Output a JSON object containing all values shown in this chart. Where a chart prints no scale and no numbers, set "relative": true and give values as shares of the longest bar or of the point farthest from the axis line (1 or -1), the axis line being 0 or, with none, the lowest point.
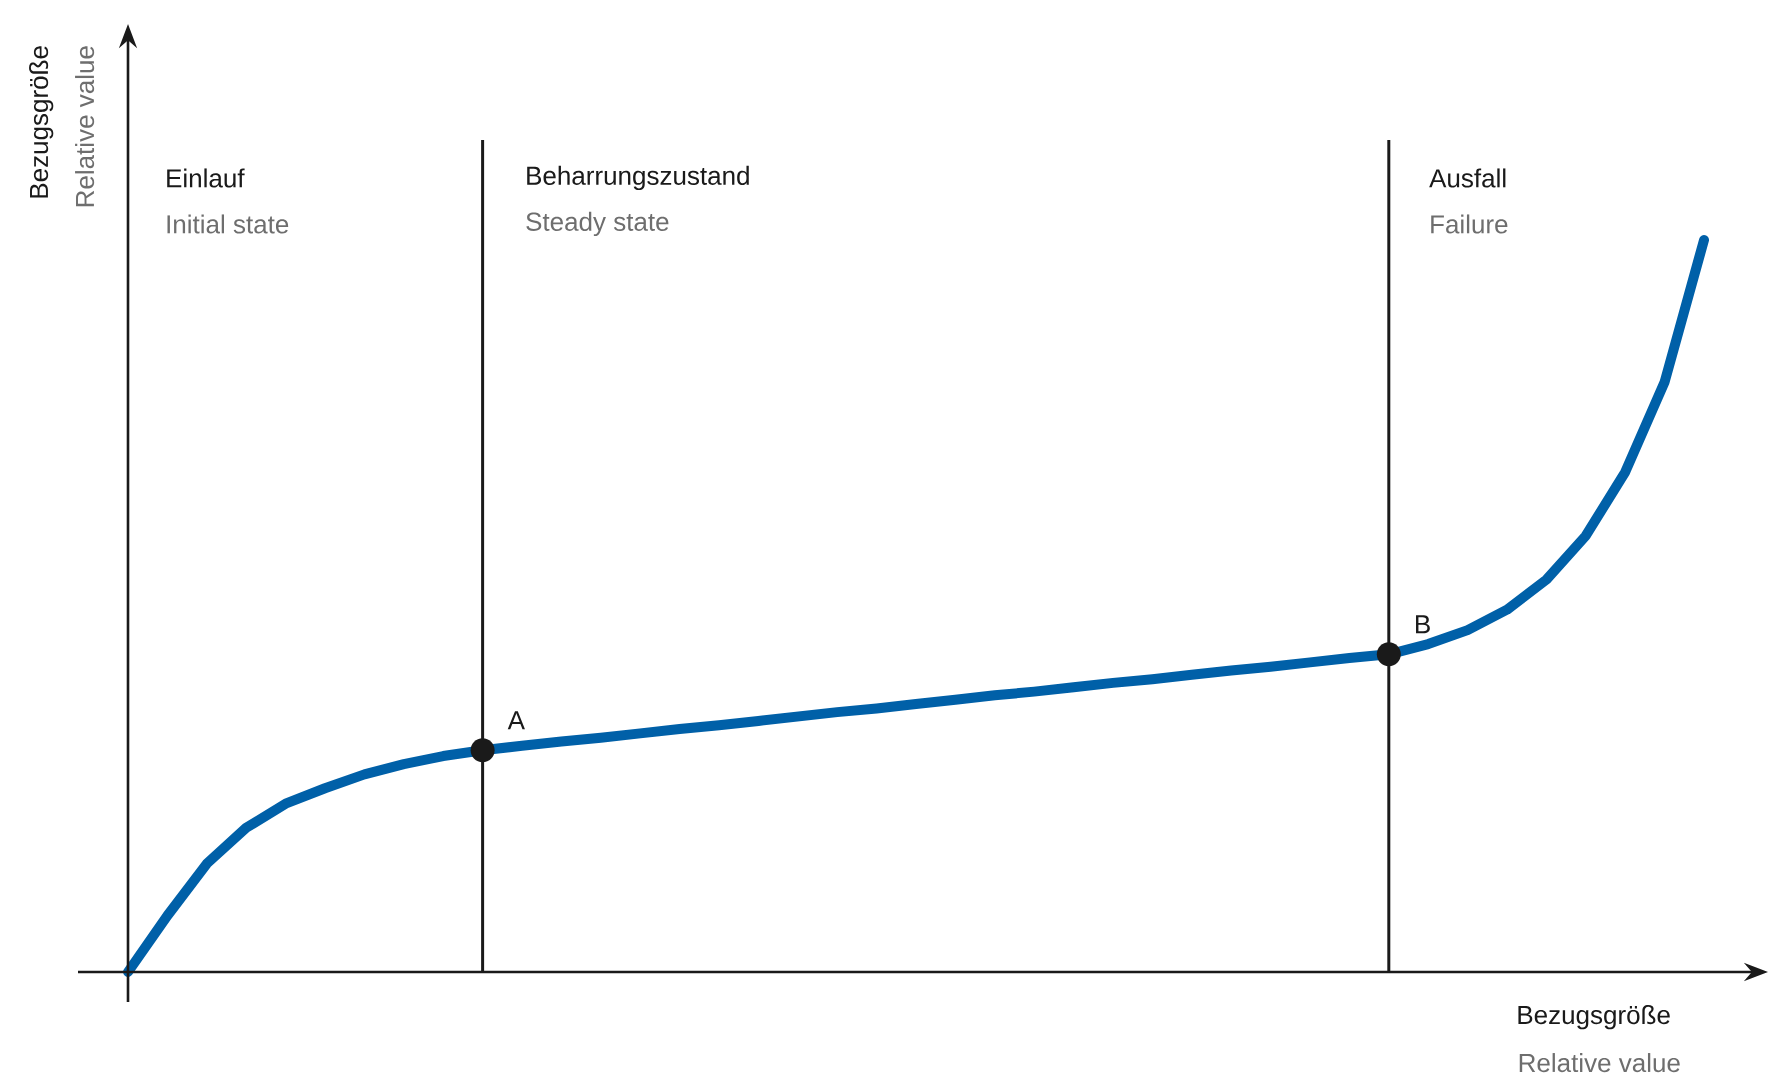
{
  "chart_data": {
    "type": "line",
    "relative": true,
    "xlabel": "Bezugsgröße",
    "ylabel": "Bezugsgröße",
    "categories": [
      null,
      null,
      null,
      null,
      null,
      null,
      null,
      null,
      null,
      null,
      null,
      null,
      null,
      null,
      null,
      null,
      null,
      null,
      null,
      null,
      null,
      null,
      null,
      null,
      null,
      null,
      null,
      null,
      null,
      null,
      null,
      null,
      null,
      null,
      null,
      null,
      null,
      null,
      null,
      null,
      null
    ],
    "series": [
      {
        "color": "#0060a8",
        "values": [
          0,
          0.077,
          0.148,
          0.197,
          0.23,
          0.251,
          0.27,
          0.284,
          0.295,
          0.303,
          0.309,
          0.315,
          0.32,
          0.326,
          0.332,
          0.337,
          0.343,
          0.349,
          0.355,
          0.36,
          0.366,
          0.372,
          0.378,
          0.383,
          0.389,
          0.395,
          0.4,
          0.406,
          0.412,
          0.417,
          0.423,
          0.429,
          0.434,
          0.448,
          0.467,
          0.495,
          0.536,
          0.596,
          0.683,
          0.806,
          1
        ]
      }
    ],
    "annotations": [
      "Relative value",
      "Relative value",
      "Einlauf",
      "Initial state",
      "Beharrungszustand",
      "Steady state",
      "Ausfall",
      "Failure",
      {
        "text": "A",
        "y": 0.303
      },
      {
        "text": "B",
        "y": 0.434
      }
    ]
  }
}
